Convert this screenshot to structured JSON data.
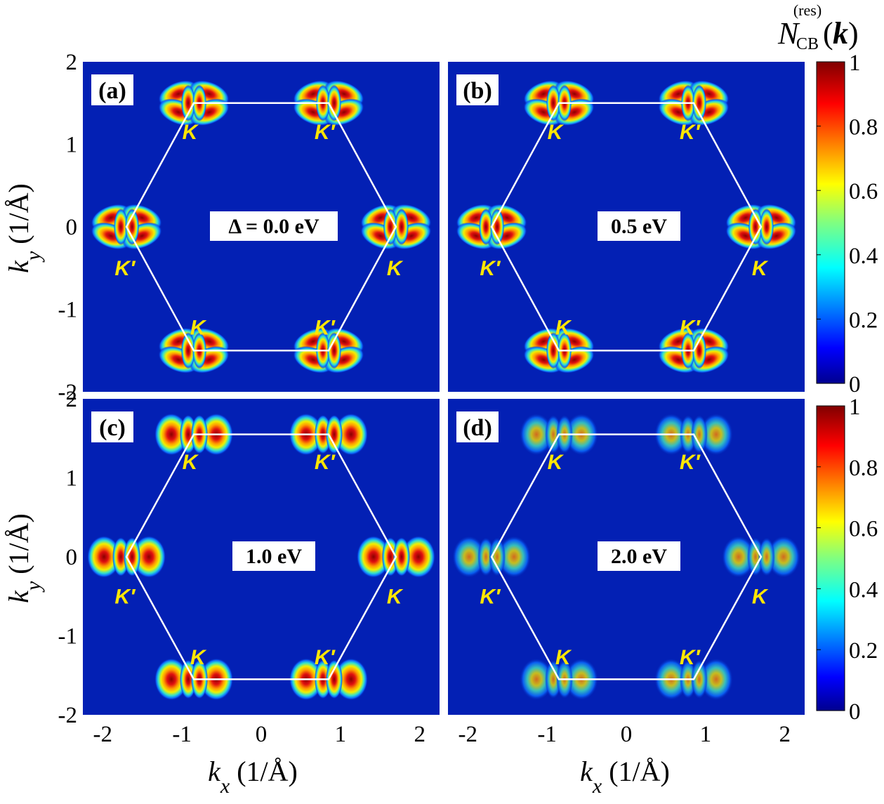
{
  "chart_data": {
    "type": "heatmap",
    "colorbar": {
      "title_symbol": "N",
      "title_subscript": "CB",
      "title_superscript": "(res)",
      "title_argument": "k",
      "ticks": [
        "0",
        "0.2",
        "0.4",
        "0.6",
        "0.8",
        "1"
      ],
      "range": [
        0,
        1
      ],
      "colormap": "jet"
    },
    "xlabel": {
      "symbol": "k",
      "subscript": "x",
      "unit": "(1/Å)"
    },
    "ylabel": {
      "symbol": "k",
      "subscript": "y",
      "unit": "(1/Å)"
    },
    "x_ticks": [
      "-2",
      "-1",
      "0",
      "1",
      "2"
    ],
    "y_ticks": [
      "2",
      "1",
      "0",
      "-1",
      "-2"
    ],
    "xlim": [
      -2.25,
      2.25
    ],
    "ylim": [
      -2.0,
      2.0
    ],
    "valley_label_K": "K",
    "valley_label_Kp": "K′",
    "panels": [
      {
        "label": "(a)",
        "annotation": "Δ = 0.0 eV",
        "brillouin_zone": {
          "a": 1.7,
          "b": 1.5
        },
        "intensity": 1.0,
        "lobes": "petal"
      },
      {
        "label": "(b)",
        "annotation": "0.5 eV",
        "brillouin_zone": {
          "a": 1.7,
          "b": 1.5
        },
        "intensity": 1.0,
        "lobes": "petal"
      },
      {
        "label": "(c)",
        "annotation": "1.0 eV",
        "brillouin_zone": {
          "a": 1.7,
          "b": 1.55
        },
        "intensity": 1.0,
        "lobes": "crescent"
      },
      {
        "label": "(d)",
        "annotation": "2.0 eV",
        "brillouin_zone": {
          "a": 1.7,
          "b": 1.55
        },
        "intensity": 0.6,
        "lobes": "crescent"
      }
    ]
  }
}
